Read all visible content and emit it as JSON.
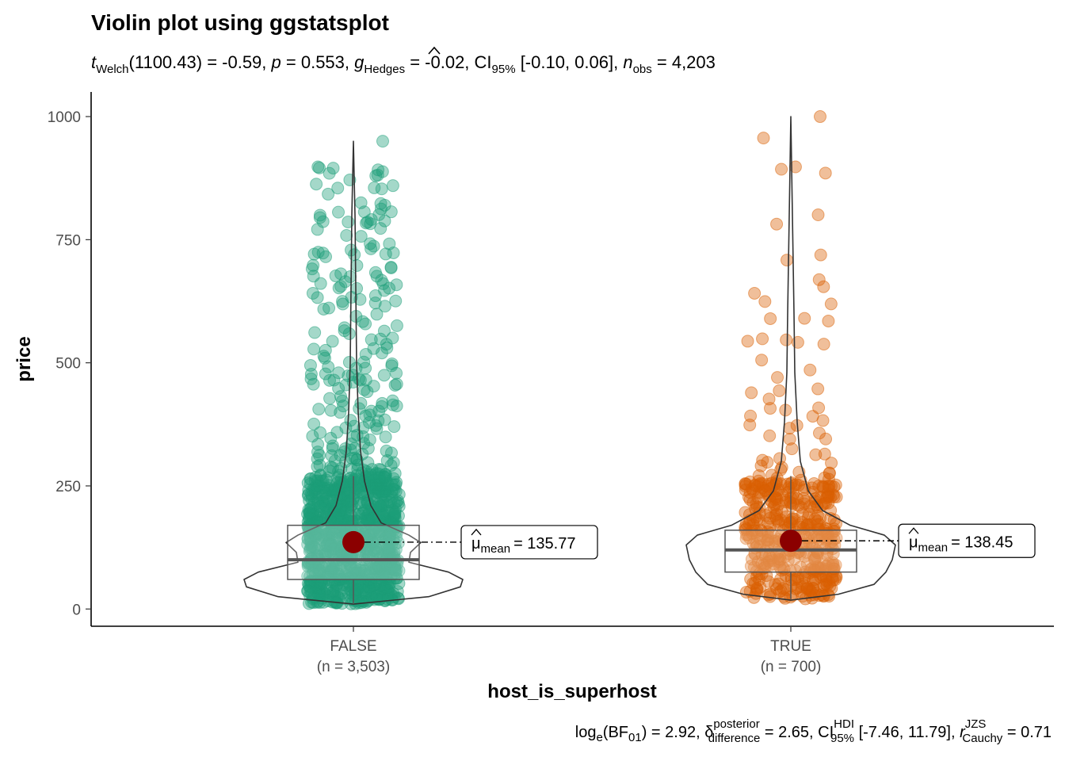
{
  "chart_data": {
    "type": "violin",
    "title": "Violin plot using ggstatsplot",
    "subtitle": {
      "t_label": "t",
      "t_sub": "Welch",
      "df": "(1100.43) = -0.59, ",
      "p_label": "p",
      "p_value": " = 0.553, ",
      "g_label": "g",
      "g_sub": "Hedges",
      "g_value": " = -0.02, CI",
      "ci_sub": "95%",
      "ci_value": " [-0.10, 0.06], ",
      "n_label": "n",
      "n_sub": "obs",
      "n_value": " = 4,203"
    },
    "caption": {
      "log": "log",
      "log_sub": "e",
      "bf": "(BF",
      "bf_sub": "01",
      "bf_value": ") = 2.92, ",
      "delta": "δ",
      "delta_sup": "posterior",
      "delta_sub": "difference",
      "delta_value": " = 2.65, CI",
      "hdi_sup": "HDI",
      "hdi_sub": "95%",
      "hdi_value": " [-7.46, 11.79], ",
      "r_label": "r",
      "r_sup": "JZS",
      "r_sub": "Cauchy",
      "r_value": " = 0.71"
    },
    "xlabel": "host_is_superhost",
    "ylabel": "price",
    "ylim": [
      -35,
      1050
    ],
    "yticks": [
      0,
      250,
      500,
      750,
      1000
    ],
    "groups": [
      {
        "name": "FALSE",
        "n_label": "(n = 3,503)",
        "color": "#1b9e77",
        "q1": 60,
        "median": 100,
        "q3": 170,
        "whisker_low": 10,
        "whisker_high": 270,
        "mean": 135.77,
        "mean_label": "= 135.77",
        "max": 950
      },
      {
        "name": "TRUE",
        "n_label": "(n = 700)",
        "color": "#d95f02",
        "q1": 75,
        "median": 120,
        "q3": 160,
        "whisker_low": 20,
        "whisker_high": 270,
        "mean": 138.45,
        "mean_label": "= 138.45",
        "max": 1000
      }
    ],
    "mean_symbol": "μ",
    "mean_sub": "mean",
    "mean_color": "#8b0000"
  }
}
